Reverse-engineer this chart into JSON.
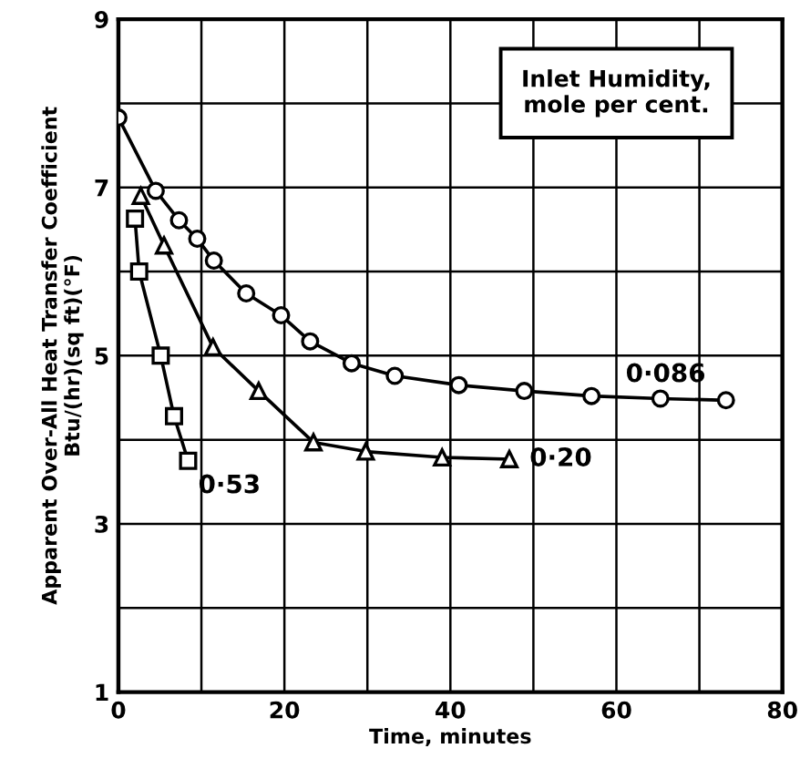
{
  "chart_data": {
    "type": "line",
    "xlabel": "Time, minutes",
    "ylabel": "Apparent Over-All Heat Transfer Coefficient\nBtu/(hr)(sq ft)(°F)",
    "annotations": [
      "Inlet Humidity,\nmole per cent."
    ],
    "xlim": [
      0,
      80
    ],
    "ylim": [
      1,
      9
    ],
    "xticks": [
      0,
      {
        "value": 10,
        "label": null
      },
      20,
      {
        "value": 30,
        "label": null
      },
      40,
      {
        "value": 50,
        "label": null
      },
      60,
      {
        "value": 70,
        "label": null
      },
      80
    ],
    "yticks": [
      1,
      {
        "value": 2,
        "label": null
      },
      3,
      {
        "value": 4,
        "label": null
      },
      5,
      {
        "value": 6,
        "label": null
      },
      7,
      {
        "value": 8,
        "label": null
      },
      9
    ],
    "grid": true,
    "legend": false,
    "series": [
      {
        "name": "0·086",
        "color": "#000000",
        "marker": "circle",
        "x": [
          0,
          4.5,
          7.3,
          9.5,
          11.5,
          15.4,
          19.6,
          23.1,
          28.1,
          33.3,
          41.0,
          48.9,
          57.0,
          65.3,
          73.2
        ],
        "values": [
          7.83,
          6.96,
          6.61,
          6.39,
          6.13,
          5.74,
          5.48,
          5.17,
          4.91,
          4.76,
          4.65,
          4.58,
          4.52,
          4.49,
          4.47
        ]
      },
      {
        "name": "0·20",
        "color": "#000000",
        "marker": "triangle",
        "x": [
          2.7,
          5.5,
          11.4,
          16.9,
          23.5,
          29.8,
          39.0,
          47.1
        ],
        "values": [
          6.9,
          6.31,
          5.1,
          4.58,
          3.97,
          3.86,
          3.79,
          3.77
        ]
      },
      {
        "name": "0·53",
        "color": "#000000",
        "marker": "square",
        "x": [
          2.0,
          2.5,
          5.1,
          6.7,
          8.4
        ],
        "values": [
          6.63,
          6.0,
          5.0,
          4.28,
          3.75
        ]
      }
    ]
  }
}
